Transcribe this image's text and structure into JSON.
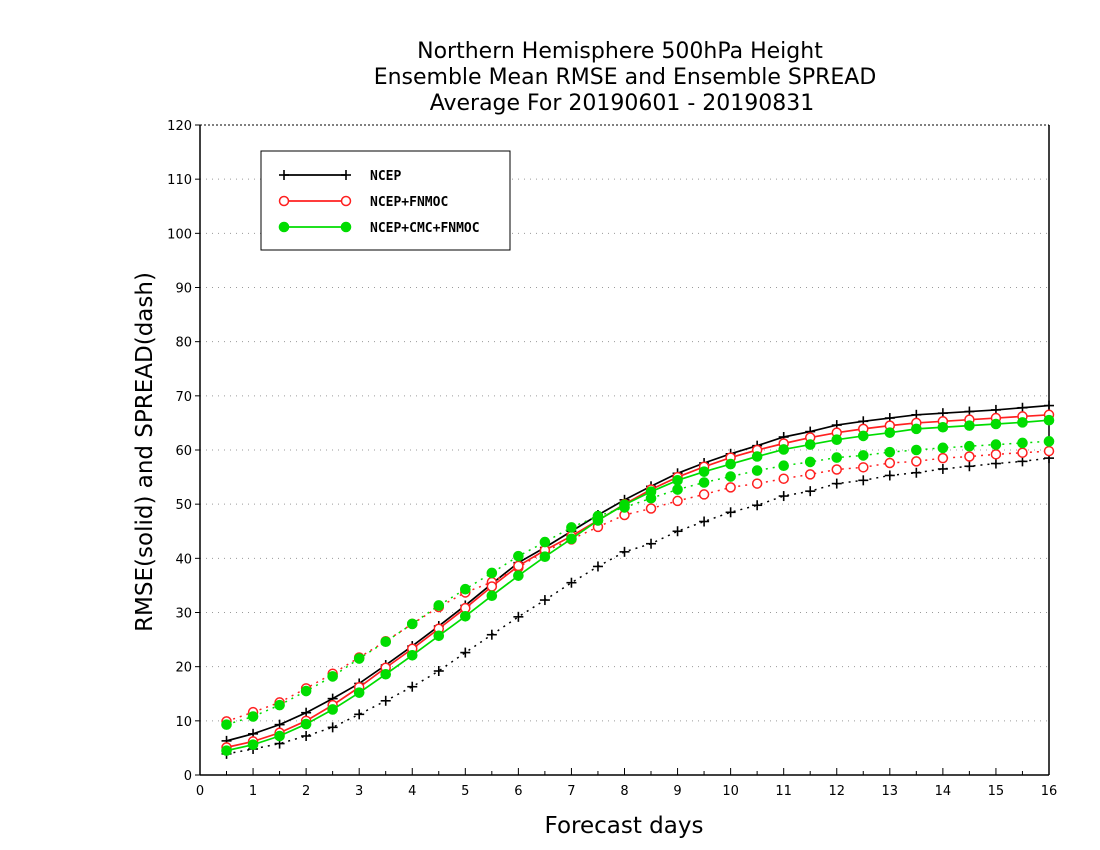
{
  "chart_data": {
    "type": "line",
    "title_lines": [
      "Northern Hemisphere 500hPa Height",
      "Ensemble Mean RMSE and Ensemble SPREAD",
      "Average For 20190601 - 20190831"
    ],
    "xlabel": "Forecast days",
    "ylabel": "RMSE(solid) and SPREAD(dash)",
    "xlim": [
      0,
      16
    ],
    "ylim": [
      0,
      120
    ],
    "xticks": [
      "0",
      "1",
      "2",
      "3",
      "4",
      "5",
      "6",
      "7",
      "8",
      "9",
      "10",
      "11",
      "12",
      "13",
      "14",
      "15",
      "16"
    ],
    "yticks": [
      "0",
      "10",
      "20",
      "30",
      "40",
      "50",
      "60",
      "70",
      "80",
      "90",
      "100",
      "110",
      "120"
    ],
    "grid": true,
    "legend_placement": "top-left",
    "x": [
      0.5,
      1,
      1.5,
      2,
      2.5,
      3,
      3.5,
      4,
      4.5,
      5,
      5.5,
      6,
      6.5,
      7,
      7.5,
      8,
      8.5,
      9,
      9.5,
      10,
      10.5,
      11,
      11.5,
      12,
      12.5,
      13,
      13.5,
      14,
      14.5,
      15,
      15.5,
      16
    ],
    "series": [
      {
        "name": "NCEP",
        "color": "#000000",
        "marker": "plus",
        "rmse": [
          6.3,
          7.6,
          9.3,
          11.5,
          14.1,
          16.9,
          20.3,
          23.8,
          27.5,
          31.3,
          35.3,
          39.2,
          42.0,
          45.0,
          48.0,
          50.8,
          53.3,
          55.7,
          57.6,
          59.3,
          60.8,
          62.4,
          63.4,
          64.6,
          65.3,
          65.9,
          66.5,
          66.8,
          67.1,
          67.4,
          67.8,
          68.2
        ],
        "spread": [
          3.9,
          4.8,
          5.8,
          7.2,
          8.8,
          11.2,
          13.7,
          16.3,
          19.2,
          22.6,
          25.9,
          29.2,
          32.3,
          35.5,
          38.5,
          41.2,
          42.7,
          45.0,
          46.8,
          48.5,
          49.8,
          51.5,
          52.4,
          53.8,
          54.4,
          55.3,
          55.8,
          56.5,
          57.0,
          57.5,
          57.9,
          58.5
        ]
      },
      {
        "name": "NCEP+FNMOC",
        "color": "#ff2020",
        "marker": "circle-open",
        "rmse": [
          5.1,
          6.2,
          7.8,
          10.0,
          12.9,
          16.2,
          19.8,
          23.3,
          27.0,
          30.8,
          34.8,
          38.6,
          41.5,
          44.1,
          47.0,
          50.0,
          52.7,
          55.0,
          56.9,
          58.6,
          60.0,
          61.2,
          62.3,
          63.2,
          63.9,
          64.5,
          65.0,
          65.3,
          65.6,
          65.9,
          66.2,
          66.5
        ],
        "spread": [
          9.9,
          11.6,
          13.4,
          16.0,
          18.7,
          21.7,
          24.7,
          27.9,
          31.0,
          33.7,
          35.6,
          38.3,
          41.3,
          43.5,
          45.8,
          48.0,
          49.2,
          50.6,
          51.8,
          53.1,
          53.8,
          54.7,
          55.5,
          56.4,
          56.8,
          57.6,
          57.9,
          58.5,
          58.8,
          59.2,
          59.5,
          59.8
        ]
      },
      {
        "name": "NCEP+CMC+FNMOC",
        "color": "#00dd00",
        "marker": "circle-filled",
        "rmse": [
          4.5,
          5.6,
          7.2,
          9.4,
          12.1,
          15.2,
          18.6,
          22.1,
          25.7,
          29.3,
          33.1,
          36.8,
          40.3,
          43.6,
          47.0,
          49.9,
          52.3,
          54.4,
          56.0,
          57.4,
          58.8,
          60.1,
          61.0,
          61.9,
          62.6,
          63.2,
          63.9,
          64.2,
          64.5,
          64.8,
          65.1,
          65.5
        ],
        "spread": [
          9.3,
          10.8,
          12.9,
          15.5,
          18.2,
          21.5,
          24.6,
          27.9,
          31.3,
          34.3,
          37.3,
          40.4,
          43.0,
          45.7,
          47.8,
          49.4,
          51.1,
          52.7,
          54.0,
          55.1,
          56.2,
          57.1,
          57.8,
          58.6,
          59.0,
          59.6,
          60.0,
          60.4,
          60.7,
          61.0,
          61.3,
          61.6
        ]
      }
    ]
  }
}
